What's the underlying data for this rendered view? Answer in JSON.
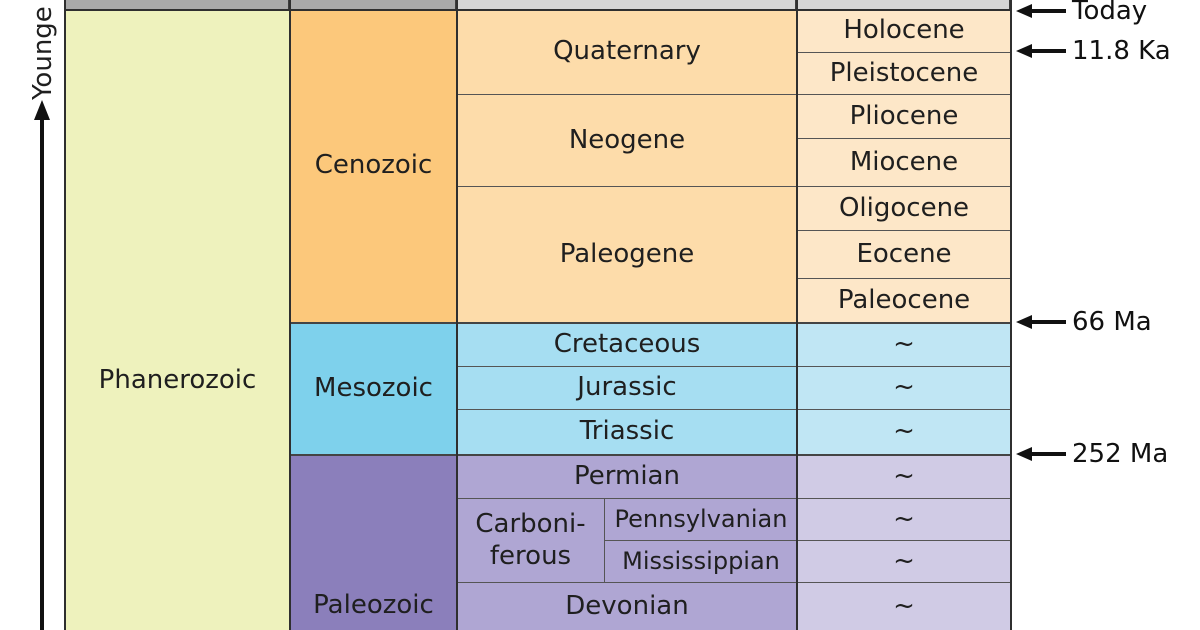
{
  "axis": {
    "label": "Younge"
  },
  "eons": [
    {
      "name": "Phanerozoic"
    }
  ],
  "eras": [
    {
      "name": "Cenozoic"
    },
    {
      "name": "Mesozoic"
    },
    {
      "name": "Paleozoic"
    }
  ],
  "periods": {
    "quaternary": "Quaternary",
    "neogene": "Neogene",
    "paleogene": "Paleogene",
    "cretaceous": "Cretaceous",
    "jurassic": "Jurassic",
    "triassic": "Triassic",
    "permian": "Permian",
    "carboniferous_line1": "Carboni-",
    "carboniferous_line2": "ferous",
    "pennsylvanian": "Pennsylvanian",
    "mississippian": "Mississippian",
    "devonian": "Devonian"
  },
  "epochs": {
    "holocene": "Holocene",
    "pleistocene": "Pleistocene",
    "pliocene": "Pliocene",
    "miocene": "Miocene",
    "oligocene": "Oligocene",
    "eocene": "Eocene",
    "paleocene": "Paleocene",
    "placeholder": "~"
  },
  "markers": {
    "today": "Today",
    "holocene_start": "11.8 Ka",
    "cenozoic_start": "66 Ma",
    "mesozoic_start": "252 Ma"
  },
  "colors": {
    "eon": "#eef2bd",
    "cenozoic": "#fcc87b",
    "mesozoic": "#7ed1ec",
    "paleozoic": "#8b7fbb"
  }
}
